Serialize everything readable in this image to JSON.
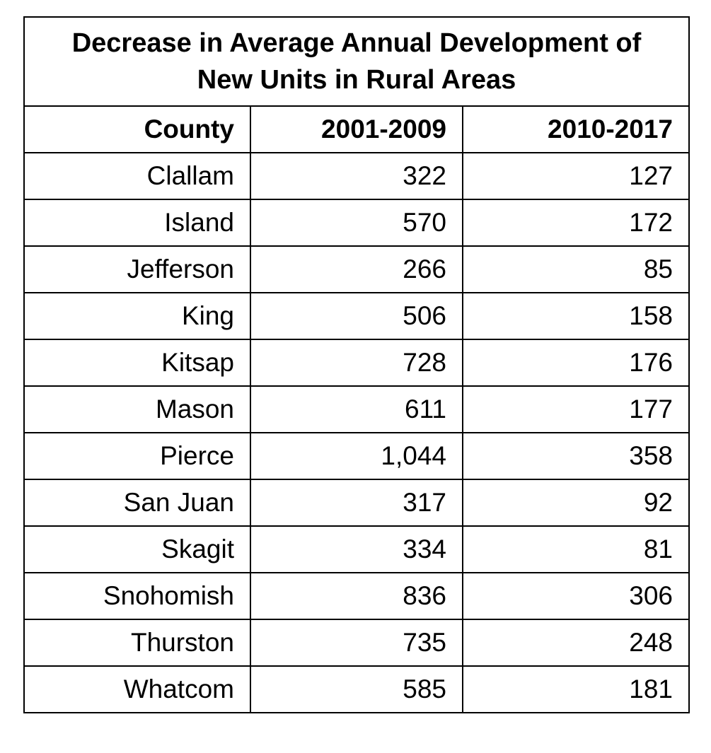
{
  "table": {
    "title_line1": "Decrease in Average Annual Development of",
    "title_line2": "New Units in Rural Areas",
    "headers": [
      "County",
      "2001-2009",
      "2010-2017"
    ],
    "rows": [
      [
        "Clallam",
        "322",
        "127"
      ],
      [
        "Island",
        "570",
        "172"
      ],
      [
        "Jefferson",
        "266",
        "85"
      ],
      [
        "King",
        "506",
        "158"
      ],
      [
        "Kitsap",
        "728",
        "176"
      ],
      [
        "Mason",
        "611",
        "177"
      ],
      [
        "Pierce",
        "1,044",
        "358"
      ],
      [
        "San Juan",
        "317",
        "92"
      ],
      [
        "Skagit",
        "334",
        "81"
      ],
      [
        "Snohomish",
        "836",
        "306"
      ],
      [
        "Thurston",
        "735",
        "248"
      ],
      [
        "Whatcom",
        "585",
        "181"
      ]
    ]
  }
}
